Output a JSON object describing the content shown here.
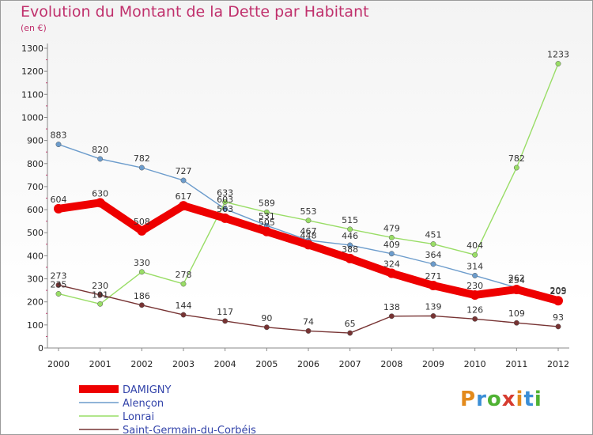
{
  "header": {
    "title": "Evolution du Montant de la Dette par Habitant",
    "subtitle": "(en €)"
  },
  "logo": {
    "text": "Proxiti",
    "letter_colors": [
      "#e38a1c",
      "#3b8ed6",
      "#4fb233",
      "#d63b2f",
      "#e38a1c",
      "#3b8ed6",
      "#4fb233"
    ]
  },
  "chart_data": {
    "type": "line",
    "title": "Evolution du Montant de la Dette par Habitant",
    "subtitle": "(en €)",
    "xlabel": "",
    "ylabel": "",
    "x": [
      "2000",
      "2001",
      "2002",
      "2003",
      "2004",
      "2005",
      "2006",
      "2007",
      "2008",
      "2009",
      "2010",
      "2011",
      "2012"
    ],
    "ylim": [
      0,
      1300
    ],
    "yticks": [
      0,
      100,
      200,
      300,
      400,
      500,
      600,
      700,
      800,
      900,
      1000,
      1100,
      1200,
      1300
    ],
    "grid": false,
    "legend_position": "bottom-left",
    "series": [
      {
        "name": "DAMIGNY",
        "color": "#ee0000",
        "values": [
          604,
          630,
          508,
          617,
          563,
          505,
          448,
          388,
          324,
          271,
          230,
          254,
          205
        ]
      },
      {
        "name": "Alençon",
        "color": "#6c9ccc",
        "values": [
          883,
          820,
          782,
          727,
          603,
          531,
          467,
          446,
          409,
          364,
          314,
          262,
          209
        ]
      },
      {
        "name": "Lonrai",
        "color": "#99dd66",
        "values": [
          235,
          191,
          330,
          278,
          633,
          589,
          553,
          515,
          479,
          451,
          404,
          782,
          1233
        ]
      },
      {
        "name": "Saint-Germain-du-Corbéis",
        "color": "#773333",
        "values": [
          273,
          230,
          186,
          144,
          117,
          90,
          74,
          65,
          138,
          139,
          126,
          109,
          93
        ]
      }
    ]
  }
}
